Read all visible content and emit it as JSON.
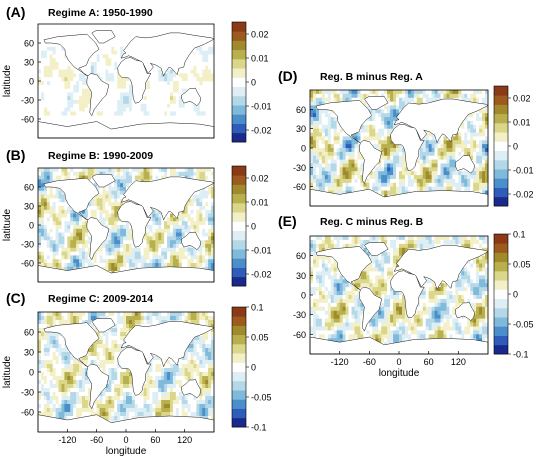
{
  "colors": {
    "colormap": [
      "#1a2a8c",
      "#2e5cb8",
      "#4a8fcc",
      "#7fbadb",
      "#b5d8e8",
      "#ddeef5",
      "#ffffff",
      "#f3f0c8",
      "#dad68a",
      "#b8b04e",
      "#a08a2c",
      "#9c5a1e",
      "#8a3a16"
    ],
    "map_background": "#ffffff",
    "coast": "#111111"
  },
  "icons": {
    "map": "world-map-icon"
  },
  "chart_data": [
    {
      "type": "heatmap",
      "panel_label": "(A)",
      "title": "Regime A: 1950-1990",
      "ylabel": "latitude",
      "xlabel": "",
      "x_ticks": [],
      "y_ticks": [
        "60",
        "30",
        "0",
        "-30",
        "-60"
      ],
      "colorbar": {
        "ticks": [
          "0.02",
          "0.01",
          "0",
          "-0.01",
          "-0.02"
        ],
        "range": [
          -0.025,
          0.025
        ]
      },
      "field": {
        "amp": 0.35,
        "seed": 1.3,
        "coverage": 0.55
      }
    },
    {
      "type": "heatmap",
      "panel_label": "(B)",
      "title": "Regime B: 1990-2009",
      "ylabel": "latitude",
      "xlabel": "",
      "x_ticks": [],
      "y_ticks": [
        "60",
        "30",
        "0",
        "-30",
        "-60"
      ],
      "colorbar": {
        "ticks": [
          "0.02",
          "0.01",
          "0",
          "-0.01",
          "-0.02"
        ],
        "range": [
          -0.025,
          0.025
        ]
      },
      "field": {
        "amp": 0.75,
        "seed": 2.7,
        "coverage": 1
      }
    },
    {
      "type": "heatmap",
      "panel_label": "(C)",
      "title": "Regime C: 2009-2014",
      "ylabel": "latitude",
      "xlabel": "longitude",
      "x_ticks": [
        "-120",
        "-60",
        "0",
        "60",
        "120"
      ],
      "y_ticks": [
        "60",
        "30",
        "0",
        "-30",
        "-60"
      ],
      "colorbar": {
        "ticks": [
          "0.1",
          "0.05",
          "0",
          "-0.05",
          "-0.1"
        ],
        "range": [
          -0.1,
          0.1
        ]
      },
      "field": {
        "amp": 0.7,
        "seed": 4.1,
        "coverage": 1
      }
    },
    {
      "type": "heatmap",
      "panel_label": "(D)",
      "title": "Reg. B minus Reg. A",
      "ylabel": "",
      "xlabel": "",
      "x_ticks": [],
      "y_ticks": [
        "60",
        "30",
        "0",
        "-30",
        "-60"
      ],
      "colorbar": {
        "ticks": [
          "0.02",
          "0.01",
          "0",
          "-0.01",
          "-0.02"
        ],
        "range": [
          -0.025,
          0.025
        ]
      },
      "field": {
        "amp": 0.85,
        "seed": 5.9,
        "coverage": 1
      }
    },
    {
      "type": "heatmap",
      "panel_label": "(E)",
      "title": "Reg. C minus Reg. B",
      "ylabel": "",
      "xlabel": "longitude",
      "x_ticks": [
        "-120",
        "-60",
        "0",
        "60",
        "120"
      ],
      "y_ticks": [
        "60",
        "30",
        "0",
        "-30",
        "-60"
      ],
      "colorbar": {
        "ticks": [
          "0.1",
          "0.05",
          "0",
          "-0.05",
          "-0.1"
        ],
        "range": [
          -0.1,
          0.1
        ]
      },
      "field": {
        "amp": 0.75,
        "seed": 7.3,
        "coverage": 1
      }
    }
  ]
}
